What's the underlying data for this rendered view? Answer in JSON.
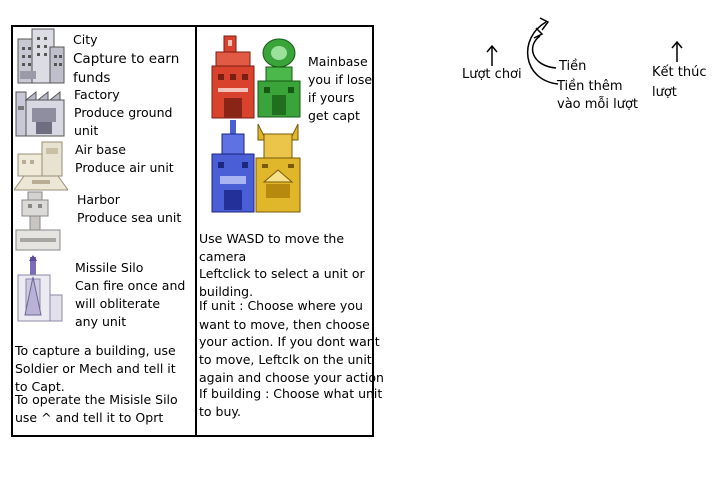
{
  "colors": {
    "red": "#d9432e",
    "green": "#3aa33a",
    "blue": "#4a5fd6",
    "yellow": "#e0b62a",
    "neutral": "#b4b4c0"
  },
  "legend": {
    "city": {
      "name": "City",
      "line1": "Capture to earn",
      "line2": "funds",
      "icon": "city-icon"
    },
    "factory": {
      "name": "Factory",
      "line1": "Produce ground",
      "line2": "unit",
      "icon": "factory-icon"
    },
    "airbase": {
      "name": "Air base",
      "line1": "Produce air unit",
      "icon": "airbase-icon"
    },
    "harbor": {
      "name": "Harbor",
      "line1": "Produce sea unit",
      "icon": "harbor-icon"
    },
    "silo": {
      "name": "Missile Silo",
      "line1": "Can fire once and",
      "line2": "will obliterate",
      "line3": "any unit",
      "icon": "missile-silo-icon"
    }
  },
  "capture_help": {
    "line1": "To capture a building, use",
    "line2": "Soldier or Mech and tell it",
    "line3": "to Capt.",
    "line4": "To operate the Misisle Silo",
    "line5": "use ^ and tell it to Oprt"
  },
  "mainbase": {
    "line1": "Mainbase",
    "line2": "you if lose",
    "line3": "if yours",
    "line4": "get capt",
    "icons": [
      "red-mainbase-icon",
      "green-mainbase-icon",
      "blue-mainbase-icon",
      "yellow-mainbase-icon"
    ]
  },
  "controls": {
    "l1": "Use WASD to move the",
    "l2": "camera",
    "l3": "Leftclick to select a unit or",
    "l4": "building.",
    "l5": "If unit : Choose where you",
    "l6": "want to move, then choose",
    "l7": "your action. If you dont want",
    "l8": "to move, Leftclk on the unit",
    "l9": "again and choose your action",
    "l10": "If building : Choose what unit",
    "l11": "to buy."
  },
  "hud_notes": {
    "turn": "Lượt chơi",
    "money": "Tiền",
    "money_per_turn_1": "Tiền thêm",
    "money_per_turn_2": "vào mỗi lượt",
    "end_turn_1": "Kết thúc",
    "end_turn_2": "lượt"
  }
}
